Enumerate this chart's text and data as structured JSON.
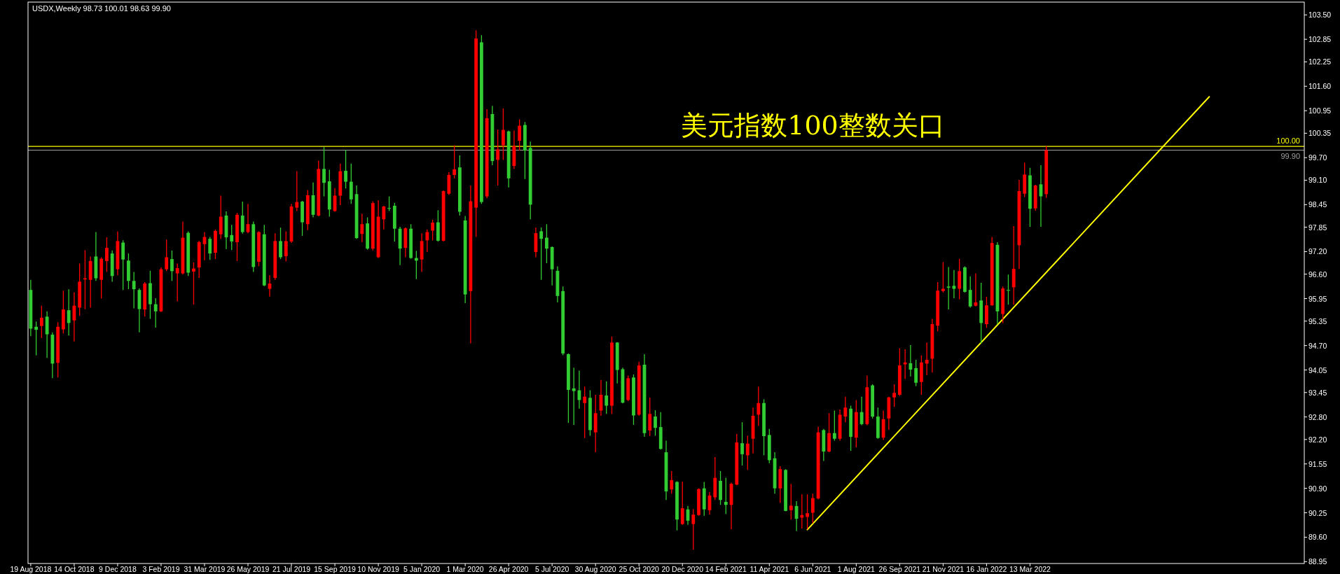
{
  "chart_data": {
    "type": "candlestick",
    "title": "USDX,Weekly  98.73 100.01 98.63 99.90",
    "annotations": [
      "美元指数100整数关口"
    ],
    "categories": [
      "19 Aug 2018",
      null,
      null,
      null,
      null,
      null,
      null,
      null,
      "14 Oct 2018",
      null,
      null,
      null,
      null,
      null,
      null,
      null,
      "9 Dec 2018",
      null,
      null,
      null,
      null,
      null,
      null,
      null,
      "3 Feb 2019",
      null,
      null,
      null,
      null,
      null,
      null,
      null,
      "31 Mar 2019",
      null,
      null,
      null,
      null,
      null,
      null,
      null,
      "26 May 2019",
      null,
      null,
      null,
      null,
      null,
      null,
      null,
      "21 Jul 2019",
      null,
      null,
      null,
      null,
      null,
      null,
      null,
      "15 Sep 2019",
      null,
      null,
      null,
      null,
      null,
      null,
      null,
      "10 Nov 2019",
      null,
      null,
      null,
      null,
      null,
      null,
      null,
      "5 Jan 2020",
      null,
      null,
      null,
      null,
      null,
      null,
      null,
      "1 Mar 2020",
      null,
      null,
      null,
      null,
      null,
      null,
      null,
      "26 Apr 2020",
      null,
      null,
      null,
      null,
      null,
      null,
      null,
      "5 Jul 2020",
      null,
      null,
      null,
      null,
      null,
      null,
      null,
      "30 Aug 2020",
      null,
      null,
      null,
      null,
      null,
      null,
      null,
      "25 Oct 2020",
      null,
      null,
      null,
      null,
      null,
      null,
      null,
      "20 Dec 2020",
      null,
      null,
      null,
      null,
      null,
      null,
      null,
      "14 Feb 2021",
      null,
      null,
      null,
      null,
      null,
      null,
      null,
      "11 Apr 2021",
      null,
      null,
      null,
      null,
      null,
      null,
      null,
      "6 Jun 2021",
      null,
      null,
      null,
      null,
      null,
      null,
      null,
      "1 Aug 2021",
      null,
      null,
      null,
      null,
      null,
      null,
      null,
      "26 Sep 2021",
      null,
      null,
      null,
      null,
      null,
      null,
      null,
      "21 Nov 2021",
      null,
      null,
      null,
      null,
      null,
      null,
      null,
      "16 Jan 2022",
      null,
      null,
      null,
      null,
      null,
      null,
      null,
      "13 Mar 2022",
      null,
      null,
      null,
      null,
      null,
      null,
      null,
      null,
      null,
      null,
      null,
      null,
      null,
      null,
      null,
      null,
      null,
      null,
      null,
      null,
      null,
      null,
      null,
      null,
      null,
      null,
      null,
      null,
      null,
      null,
      null,
      null,
      null,
      null,
      null,
      null,
      null,
      null,
      null,
      null,
      null,
      null,
      null,
      null,
      null,
      null,
      null,
      null,
      null,
      null
    ],
    "ylim": [
      88.9,
      103.84
    ],
    "yticks": [
      {
        "value": 103.5,
        "label": "103.50"
      },
      {
        "value": 102.85,
        "label": "102.85"
      },
      {
        "value": 102.25,
        "label": "102.25"
      },
      {
        "value": 101.6,
        "label": "101.60"
      },
      {
        "value": 100.95,
        "label": "100.95"
      },
      {
        "value": 100.35,
        "label": "100.35"
      },
      {
        "value": 99.7,
        "label": "99.70"
      },
      {
        "value": 99.1,
        "label": "99.10"
      },
      {
        "value": 98.45,
        "label": "98.45"
      },
      {
        "value": 97.85,
        "label": "97.85"
      },
      {
        "value": 97.2,
        "label": "97.20"
      },
      {
        "value": 96.6,
        "label": "96.60"
      },
      {
        "value": 95.95,
        "label": "95.95"
      },
      {
        "value": 95.35,
        "label": "95.35"
      },
      {
        "value": 94.7,
        "label": "94.70"
      },
      {
        "value": 94.05,
        "label": "94.05"
      },
      {
        "value": 93.45,
        "label": "93.45"
      },
      {
        "value": 92.8,
        "label": "92.80"
      },
      {
        "value": 92.2,
        "label": "92.20"
      },
      {
        "value": 91.55,
        "label": "91.55"
      },
      {
        "value": 90.9,
        "label": "90.90"
      },
      {
        "value": 90.25,
        "label": "90.25"
      },
      {
        "value": 89.6,
        "label": "89.60"
      },
      {
        "value": 88.95,
        "label": "88.95"
      }
    ],
    "colors": [
      "#32cd32",
      "#32cd32",
      "#ff0000",
      "#32cd32",
      "#32cd32",
      "#ff0000",
      "#ff0000",
      "#32cd32",
      "#ff0000",
      "#ff0000",
      "#ff0000",
      "#ff0000",
      "#32cd32",
      "#ff0000",
      "#ff0000",
      "#32cd32",
      "#ff0000",
      "#32cd32",
      "#32cd32",
      "#32cd32",
      "#32cd32",
      "#ff0000",
      "#32cd32",
      "#32cd32",
      "#ff0000",
      "#ff0000",
      "#32cd32",
      "#ff0000",
      "#ff0000",
      "#32cd32",
      "#ff0000",
      "#ff0000",
      "#ff0000",
      "#32cd32",
      "#ff0000",
      "#ff0000",
      "#32cd32",
      "#32cd32",
      "#ff0000",
      "#32cd32",
      "#ff0000",
      "#32cd32",
      "#ff0000",
      "#32cd32",
      "#ff0000",
      "#ff0000",
      "#32cd32",
      "#ff0000",
      "#ff0000",
      "#ff0000",
      "#32cd32",
      "#ff0000",
      "#32cd32",
      "#ff0000",
      "#32cd32",
      "#32cd32",
      "#ff0000",
      "#ff0000",
      "#32cd32",
      "#32cd32",
      "#32cd32",
      "#ff0000",
      "#32cd32",
      "#ff0000",
      "#ff0000",
      "#ff0000",
      "#32cd32",
      "#32cd32",
      "#32cd32",
      "#ff0000",
      "#32cd32",
      "#32cd32",
      "#ff0000",
      "#ff0000",
      "#ff0000",
      "#32cd32",
      "#ff0000",
      "#ff0000",
      "#ff0000",
      "#32cd32",
      "#32cd32",
      "#ff0000",
      "#ff0000",
      "#32cd32",
      "#ff0000",
      "#32cd32",
      "#ff0000",
      "#ff0000",
      "#32cd32",
      "#ff0000",
      "#ff0000",
      "#32cd32",
      "#32cd32",
      "#ff0000",
      "#32cd32",
      "#32cd32",
      "#32cd32",
      "#32cd32",
      "#32cd32",
      "#32cd32",
      "#32cd32",
      "#32cd32",
      "#ff0000",
      "#32cd32",
      "#ff0000",
      "#ff0000",
      "#32cd32",
      "#ff0000",
      "#32cd32",
      "#32cd32",
      "#ff0000",
      "#32cd32",
      "#ff0000",
      "#32cd32",
      "#ff0000",
      "#32cd32",
      "#32cd32",
      "#32cd32",
      "#ff0000",
      "#32cd32",
      "#ff0000",
      "#32cd32",
      "#ff0000",
      "#ff0000",
      "#32cd32",
      "#ff0000",
      "#ff0000",
      "#32cd32",
      "#32cd32",
      "#ff0000",
      "#ff0000",
      "#32cd32",
      "#ff0000",
      "#ff0000",
      "#ff0000",
      "#32cd32",
      "#32cd32",
      "#32cd32",
      "#ff0000",
      "#32cd32",
      "#ff0000",
      "#32cd32",
      "#ff0000",
      "#ff0000",
      "#ff0000",
      "#ff0000",
      "#32cd32",
      "#ff0000",
      "#32cd32",
      "#ff0000",
      "#ff0000",
      "#32cd32",
      "#ff0000",
      "#32cd32",
      "#ff0000",
      "#32cd32",
      "#32cd32",
      "#ff0000",
      "#ff0000",
      "#ff0000",
      "#ff0000",
      "#ff0000",
      "#32cd32",
      "#32cd32",
      "#ff0000",
      "#ff0000",
      "#ff0000",
      "#ff0000",
      "#ff0000",
      "#32cd32",
      "#32cd32",
      "#ff0000",
      "#32cd32",
      "#32cd32",
      "#ff0000",
      "#32cd32",
      "#ff0000",
      "#ff0000",
      "#32cd32",
      "#ff0000",
      "#32cd32",
      "#ff0000",
      "#ff0000",
      "#ff0000",
      "#32cd32",
      "#ff0000",
      "#32cd32",
      "#ff0000",
      null,
      null,
      null,
      null,
      null,
      null,
      null,
      null,
      null,
      null,
      null,
      null,
      null,
      null,
      null,
      null,
      null,
      null,
      null,
      null,
      null,
      null,
      null,
      null,
      null,
      null,
      null,
      null,
      null,
      null,
      null,
      null,
      null,
      null,
      null,
      null,
      null,
      null,
      null,
      null,
      null,
      null,
      null,
      null,
      null,
      null,
      null
    ],
    "ref_lines": [
      {
        "axis": "y",
        "value": 100,
        "label": "100.00",
        "color": "#ffff00"
      },
      {
        "axis": "y",
        "value": 99.9,
        "label": "99.90",
        "color": "#a0a0a0"
      }
    ],
    "series": [
      {
        "type": "line",
        "color": "#ffff00",
        "values": [
          null,
          null,
          null,
          null,
          null,
          null,
          null,
          null,
          null,
          null,
          null,
          null,
          null,
          null,
          null,
          null,
          null,
          null,
          null,
          null,
          null,
          null,
          null,
          null,
          null,
          null,
          null,
          null,
          null,
          null,
          null,
          null,
          null,
          null,
          null,
          null,
          null,
          null,
          null,
          null,
          null,
          null,
          null,
          null,
          null,
          null,
          null,
          null,
          null,
          null,
          null,
          null,
          null,
          null,
          null,
          null,
          null,
          null,
          null,
          null,
          null,
          null,
          null,
          null,
          null,
          null,
          null,
          null,
          null,
          null,
          null,
          null,
          null,
          null,
          null,
          null,
          null,
          null,
          null,
          null,
          null,
          null,
          null,
          null,
          null,
          null,
          null,
          null,
          null,
          null,
          null,
          null,
          null,
          null,
          null,
          null,
          null,
          null,
          null,
          null,
          null,
          null,
          null,
          null,
          null,
          null,
          null,
          null,
          null,
          null,
          null,
          null,
          null,
          null,
          null,
          null,
          null,
          null,
          null,
          null,
          null,
          null,
          null,
          null,
          null,
          null,
          null,
          null,
          null,
          null,
          null,
          null,
          null,
          null,
          null,
          null,
          null,
          null,
          null,
          null,
          null,
          null,
          null,
          89.8,
          null,
          null,
          null,
          null,
          null,
          null,
          null,
          null,
          null,
          null,
          null,
          null,
          null,
          null,
          null,
          null,
          null,
          null,
          null,
          null,
          null,
          null,
          null,
          null,
          null,
          null,
          null,
          null,
          null,
          null,
          null,
          null,
          null,
          null,
          null,
          null,
          null,
          null,
          null,
          null,
          null,
          null,
          null,
          null,
          null,
          null,
          null,
          null,
          null,
          null,
          null,
          null,
          null,
          null,
          null,
          null,
          null,
          null,
          null,
          null,
          null,
          null,
          null,
          null,
          null,
          null,
          null,
          null,
          null,
          null,
          null,
          null,
          null,
          101.32,
          null,
          null,
          null,
          null,
          null,
          null,
          null,
          null,
          null,
          null,
          null,
          null,
          null,
          null,
          null,
          null,
          null
        ]
      }
    ],
    "ohlc": [
      [
        96.18,
        96.45,
        94.95,
        95.15
      ],
      [
        95.2,
        95.34,
        94.44,
        95.12
      ],
      [
        95.22,
        95.76,
        94.9,
        95.44
      ],
      [
        95.47,
        95.61,
        94.37,
        95.0
      ],
      [
        94.99,
        95.05,
        93.83,
        94.22
      ],
      [
        94.24,
        95.32,
        93.85,
        95.2
      ],
      [
        95.13,
        96.16,
        95.02,
        95.66
      ],
      [
        95.64,
        96.2,
        94.97,
        95.3
      ],
      [
        95.37,
        96.12,
        94.81,
        95.76
      ],
      [
        95.71,
        96.88,
        95.49,
        96.4
      ],
      [
        96.46,
        97.24,
        95.67,
        96.49
      ],
      [
        96.45,
        97.07,
        95.71,
        96.95
      ],
      [
        97.07,
        97.72,
        96.42,
        96.49
      ],
      [
        96.45,
        97.05,
        95.95,
        97.01
      ],
      [
        96.95,
        97.58,
        96.66,
        97.3
      ],
      [
        97.15,
        97.23,
        96.4,
        96.55
      ],
      [
        96.73,
        97.74,
        96.57,
        97.48
      ],
      [
        97.44,
        97.5,
        96.18,
        96.99
      ],
      [
        96.96,
        97.15,
        96.2,
        96.42
      ],
      [
        96.42,
        96.66,
        95.69,
        96.2
      ],
      [
        96.18,
        96.22,
        95.05,
        95.67
      ],
      [
        95.66,
        96.39,
        95.47,
        96.35
      ],
      [
        96.36,
        96.69,
        95.41,
        95.8
      ],
      [
        95.8,
        95.96,
        95.18,
        95.61
      ],
      [
        95.61,
        96.78,
        95.59,
        96.73
      ],
      [
        96.73,
        97.52,
        96.68,
        97.05
      ],
      [
        97.0,
        97.23,
        96.42,
        96.68
      ],
      [
        96.62,
        96.88,
        95.87,
        96.76
      ],
      [
        96.62,
        98.0,
        96.59,
        97.57
      ],
      [
        97.7,
        97.74,
        96.55,
        96.64
      ],
      [
        96.67,
        96.91,
        95.79,
        96.75
      ],
      [
        96.78,
        97.49,
        96.5,
        97.45
      ],
      [
        97.4,
        97.72,
        96.97,
        97.59
      ],
      [
        97.54,
        97.59,
        96.98,
        97.15
      ],
      [
        97.17,
        97.79,
        97.0,
        97.75
      ],
      [
        97.66,
        98.69,
        97.54,
        98.13
      ],
      [
        98.16,
        98.27,
        97.27,
        97.58
      ],
      [
        97.64,
        97.91,
        97.24,
        97.47
      ],
      [
        97.45,
        98.23,
        96.95,
        98.18
      ],
      [
        98.16,
        98.53,
        97.68,
        97.72
      ],
      [
        97.72,
        98.47,
        97.69,
        97.93
      ],
      [
        97.93,
        98.0,
        96.66,
        96.79
      ],
      [
        96.93,
        97.74,
        96.81,
        97.72
      ],
      [
        97.66,
        97.91,
        96.28,
        96.3
      ],
      [
        96.21,
        96.57,
        96.0,
        96.35
      ],
      [
        96.5,
        97.69,
        96.45,
        97.48
      ],
      [
        97.48,
        97.84,
        97.0,
        97.05
      ],
      [
        97.08,
        97.74,
        96.94,
        97.48
      ],
      [
        97.47,
        98.47,
        97.43,
        98.4
      ],
      [
        98.37,
        99.34,
        98.28,
        98.52
      ],
      [
        98.53,
        98.55,
        97.62,
        97.98
      ],
      [
        97.93,
        98.84,
        97.77,
        98.7
      ],
      [
        98.7,
        99.04,
        98.11,
        98.18
      ],
      [
        98.16,
        99.62,
        98.14,
        99.4
      ],
      [
        99.4,
        99.98,
        98.67,
        99.03
      ],
      [
        99.07,
        99.38,
        98.13,
        98.32
      ],
      [
        98.28,
        98.89,
        98.26,
        98.69
      ],
      [
        98.69,
        99.54,
        98.44,
        99.34
      ],
      [
        99.35,
        99.91,
        98.88,
        99.06
      ],
      [
        99.06,
        99.54,
        98.47,
        98.59
      ],
      [
        98.73,
        98.96,
        97.54,
        97.56
      ],
      [
        97.67,
        98.21,
        97.45,
        97.93
      ],
      [
        97.95,
        98.11,
        97.25,
        97.28
      ],
      [
        97.28,
        98.54,
        97.23,
        98.49
      ],
      [
        97.05,
        98.57,
        97.03,
        98.13
      ],
      [
        98.06,
        98.42,
        97.79,
        98.4
      ],
      [
        98.36,
        98.67,
        98.28,
        98.34
      ],
      [
        98.42,
        98.5,
        97.47,
        97.81
      ],
      [
        97.81,
        97.86,
        96.84,
        97.28
      ],
      [
        97.3,
        97.84,
        97.05,
        97.82
      ],
      [
        97.81,
        97.93,
        97.01,
        97.03
      ],
      [
        97.03,
        97.22,
        96.47,
        96.96
      ],
      [
        96.99,
        97.69,
        96.66,
        97.48
      ],
      [
        97.5,
        97.79,
        97.19,
        97.72
      ],
      [
        97.76,
        98.05,
        97.5,
        97.97
      ],
      [
        97.98,
        98.3,
        97.47,
        97.49
      ],
      [
        97.49,
        98.83,
        97.47,
        98.81
      ],
      [
        98.74,
        99.32,
        98.71,
        99.24
      ],
      [
        99.24,
        100.03,
        99.15,
        99.39
      ],
      [
        99.44,
        99.76,
        98.16,
        98.26
      ],
      [
        98.03,
        98.15,
        95.83,
        96.06
      ],
      [
        96.15,
        98.96,
        94.76,
        98.54
      ],
      [
        98.37,
        103.09,
        97.59,
        102.87
      ],
      [
        102.77,
        102.96,
        98.47,
        98.52
      ],
      [
        98.67,
        100.99,
        98.62,
        100.75
      ],
      [
        100.86,
        101.08,
        99.5,
        99.61
      ],
      [
        99.64,
        100.45,
        98.96,
        99.92
      ],
      [
        100.03,
        101.01,
        99.64,
        100.44
      ],
      [
        100.4,
        100.42,
        98.91,
        99.15
      ],
      [
        99.48,
        100.42,
        99.4,
        100.01
      ],
      [
        100.15,
        100.72,
        99.89,
        100.55
      ],
      [
        100.57,
        100.65,
        99.13,
        99.89
      ],
      [
        99.96,
        100.13,
        98.06,
        98.45
      ],
      [
        97.19,
        97.84,
        97.05,
        97.69
      ],
      [
        97.74,
        97.84,
        96.45,
        97.54
      ],
      [
        97.57,
        97.93,
        96.89,
        97.28
      ],
      [
        97.32,
        97.34,
        96.3,
        96.73
      ],
      [
        96.69,
        96.81,
        95.85,
        96.02
      ],
      [
        96.15,
        96.27,
        94.44,
        94.49
      ],
      [
        94.47,
        94.49,
        92.64,
        93.52
      ],
      [
        93.56,
        94.11,
        92.59,
        93.49
      ],
      [
        93.51,
        94.03,
        93.02,
        93.25
      ],
      [
        93.17,
        93.61,
        92.24,
        93.34
      ],
      [
        93.31,
        93.51,
        92.3,
        92.45
      ],
      [
        92.39,
        93.39,
        91.86,
        92.9
      ],
      [
        92.97,
        93.78,
        92.83,
        93.39
      ],
      [
        93.37,
        93.75,
        92.88,
        93.1
      ],
      [
        93.1,
        94.94,
        92.88,
        94.78
      ],
      [
        94.78,
        94.79,
        93.69,
        94.05
      ],
      [
        94.07,
        94.11,
        93.16,
        93.18
      ],
      [
        93.25,
        93.9,
        93.22,
        93.83
      ],
      [
        93.85,
        93.93,
        92.59,
        92.84
      ],
      [
        92.86,
        94.27,
        92.83,
        94.17
      ],
      [
        94.19,
        94.47,
        92.27,
        92.37
      ],
      [
        92.44,
        93.32,
        92.29,
        92.88
      ],
      [
        92.81,
        92.98,
        92.3,
        92.51
      ],
      [
        92.53,
        92.93,
        91.93,
        91.95
      ],
      [
        91.86,
        92.17,
        90.59,
        90.82
      ],
      [
        90.87,
        91.36,
        90.76,
        91.12
      ],
      [
        91.07,
        91.09,
        89.78,
        90.07
      ],
      [
        89.95,
        91.08,
        89.93,
        90.37
      ],
      [
        90.34,
        90.43,
        89.93,
        90.04
      ],
      [
        89.95,
        90.35,
        89.27,
        90.2
      ],
      [
        90.19,
        90.9,
        90.17,
        90.88
      ],
      [
        90.9,
        91.07,
        90.17,
        90.34
      ],
      [
        90.32,
        90.8,
        90.2,
        90.71
      ],
      [
        90.66,
        91.73,
        90.59,
        91.18
      ],
      [
        91.1,
        91.36,
        90.46,
        90.59
      ],
      [
        90.54,
        91.18,
        90.22,
        90.46
      ],
      [
        90.46,
        91.05,
        89.81,
        91.02
      ],
      [
        91.0,
        92.35,
        90.98,
        92.12
      ],
      [
        92.1,
        92.66,
        91.51,
        91.81
      ],
      [
        91.78,
        92.3,
        91.39,
        92.09
      ],
      [
        92.22,
        93.05,
        91.83,
        92.83
      ],
      [
        92.86,
        93.61,
        92.56,
        93.17
      ],
      [
        93.17,
        93.27,
        91.78,
        92.29
      ],
      [
        92.32,
        92.48,
        91.57,
        91.65
      ],
      [
        91.7,
        91.86,
        90.76,
        90.9
      ],
      [
        90.9,
        91.49,
        90.51,
        91.41
      ],
      [
        91.39,
        91.41,
        90.29,
        90.3
      ],
      [
        90.32,
        91.02,
        90.07,
        90.44
      ],
      [
        90.43,
        90.56,
        89.76,
        90.09
      ],
      [
        90.12,
        90.74,
        89.83,
        90.19
      ],
      [
        90.14,
        90.74,
        89.81,
        90.24
      ],
      [
        90.25,
        90.76,
        89.97,
        90.64
      ],
      [
        90.63,
        92.54,
        90.61,
        92.39
      ],
      [
        92.45,
        92.48,
        91.63,
        91.88
      ],
      [
        91.88,
        92.9,
        91.86,
        92.37
      ],
      [
        92.37,
        92.97,
        92.17,
        92.22
      ],
      [
        92.22,
        93.0,
        92.17,
        92.86
      ],
      [
        92.81,
        93.34,
        92.66,
        93.05
      ],
      [
        93.02,
        93.1,
        91.9,
        92.27
      ],
      [
        92.25,
        93.25,
        91.99,
        92.93
      ],
      [
        92.93,
        93.34,
        92.58,
        92.61
      ],
      [
        92.61,
        93.9,
        92.58,
        93.59
      ],
      [
        93.64,
        93.67,
        92.76,
        92.81
      ],
      [
        92.81,
        93.05,
        92.22,
        92.24
      ],
      [
        92.25,
        92.97,
        92.19,
        92.74
      ],
      [
        92.76,
        93.34,
        92.46,
        93.32
      ],
      [
        93.32,
        93.67,
        93.07,
        93.44
      ],
      [
        93.39,
        94.63,
        93.36,
        94.17
      ],
      [
        94.2,
        94.6,
        93.81,
        94.25
      ],
      [
        94.23,
        94.71,
        93.88,
        94.06
      ],
      [
        94.1,
        94.32,
        93.62,
        93.71
      ],
      [
        93.73,
        94.44,
        93.39,
        94.25
      ],
      [
        94.22,
        94.78,
        93.91,
        94.32
      ],
      [
        94.35,
        95.41,
        93.98,
        95.27
      ],
      [
        95.23,
        96.39,
        95.08,
        96.16
      ],
      [
        96.15,
        96.92,
        96.11,
        96.21
      ],
      [
        96.27,
        96.79,
        95.66,
        96.24
      ],
      [
        96.29,
        96.71,
        95.96,
        96.21
      ],
      [
        96.21,
        97.01,
        95.93,
        96.68
      ],
      [
        96.78,
        96.81,
        96.11,
        96.13
      ],
      [
        96.18,
        96.54,
        95.71,
        95.74
      ],
      [
        95.76,
        96.62,
        95.74,
        95.85
      ],
      [
        95.9,
        96.37,
        94.76,
        95.3
      ],
      [
        95.27,
        96.0,
        95.17,
        95.77
      ],
      [
        95.77,
        97.59,
        95.76,
        97.43
      ],
      [
        97.38,
        97.45,
        95.27,
        95.61
      ],
      [
        95.54,
        96.27,
        95.3,
        96.22
      ],
      [
        96.18,
        96.59,
        95.79,
        96.16
      ],
      [
        96.25,
        97.88,
        95.79,
        96.74
      ],
      [
        97.37,
        99.11,
        96.74,
        98.81
      ],
      [
        98.74,
        99.57,
        98.65,
        99.25
      ],
      [
        99.23,
        99.43,
        97.86,
        98.34
      ],
      [
        98.35,
        98.98,
        98.29,
        98.96
      ],
      [
        98.99,
        99.5,
        97.86,
        98.67
      ],
      [
        98.73,
        100.01,
        98.63,
        99.9
      ],
      null,
      null,
      null,
      null,
      null,
      null,
      null,
      null,
      null,
      null,
      null,
      null,
      null,
      null,
      null,
      null,
      null,
      null,
      null,
      null,
      null,
      null,
      null,
      null,
      null,
      null,
      null,
      null,
      null,
      null,
      null,
      null,
      null,
      null,
      null,
      null,
      null,
      null,
      null,
      null,
      null,
      null,
      null,
      null,
      null,
      null,
      null
    ]
  }
}
